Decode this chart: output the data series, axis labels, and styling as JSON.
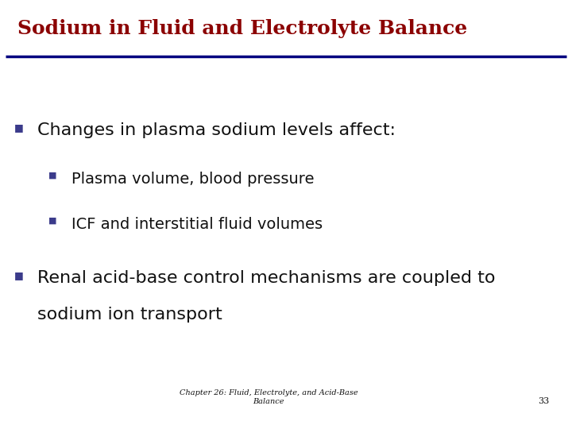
{
  "title": "Sodium in Fluid and Electrolyte Balance",
  "title_color": "#8B0000",
  "title_fontsize": 18,
  "background_color": "#FFFFFF",
  "header_line_color": "#000080",
  "bullet_color": "#3B3B8B",
  "text_color": "#111111",
  "bullet1": "Changes in plasma sodium levels affect:",
  "sub_bullet1": "Plasma volume, blood pressure",
  "sub_bullet2": "ICF and interstitial fluid volumes",
  "bullet2_line1": "Renal acid-base control mechanisms are coupled to",
  "bullet2_line2": "sodium ion transport",
  "footer_text": "Chapter 26: Fluid, Electrolyte, and Acid-Base\nBalance",
  "footer_number": "33",
  "main_fontsize": 16,
  "sub_fontsize": 14,
  "footer_fontsize": 7
}
